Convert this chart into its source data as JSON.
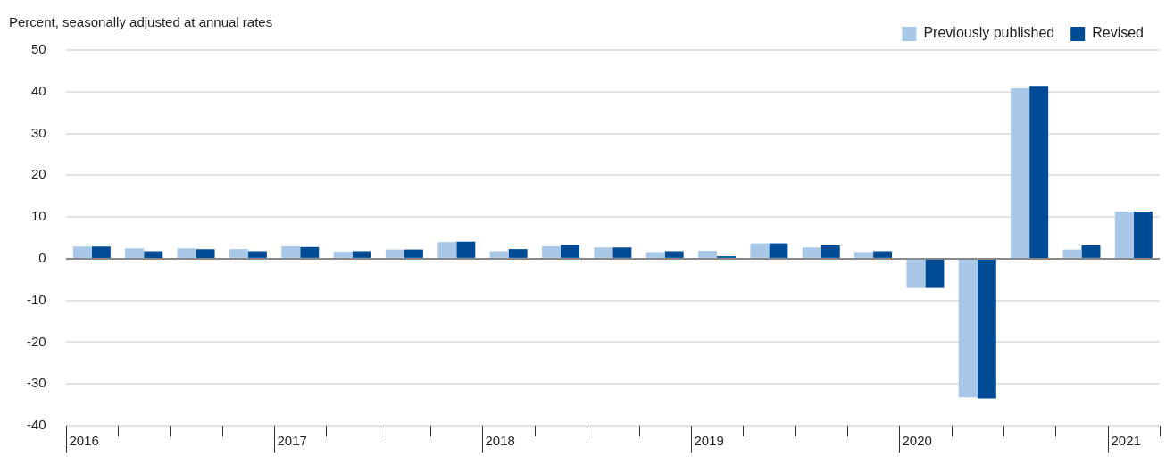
{
  "chart_data": {
    "type": "bar",
    "ylabel": "Percent, seasonally adjusted at annual rates",
    "categories": [
      "2016",
      null,
      null,
      null,
      "2017",
      null,
      null,
      null,
      "2018",
      null,
      null,
      null,
      "2019",
      null,
      null,
      null,
      "2020",
      null,
      null,
      null,
      "2021"
    ],
    "series": [
      {
        "name": "Previously published",
        "color": "#a9c8e8",
        "values": [
          2.9,
          2.5,
          2.5,
          2.3,
          3.0,
          1.7,
          2.2,
          4.0,
          1.8,
          3.0,
          2.7,
          1.6,
          1.9,
          3.7,
          2.7,
          1.6,
          -7.0,
          -33.2,
          40.8,
          2.2,
          11.3
        ]
      },
      {
        "name": "Revised",
        "color": "#004b96",
        "values": [
          2.9,
          1.8,
          2.3,
          1.8,
          2.8,
          1.8,
          2.2,
          4.1,
          2.3,
          3.3,
          2.7,
          1.8,
          0.6,
          3.7,
          3.2,
          1.8,
          -7.0,
          -33.5,
          41.4,
          3.2,
          11.3
        ]
      }
    ],
    "ylim": [
      -40,
      50
    ],
    "yticks": [
      -40,
      -30,
      -20,
      -10,
      0,
      10,
      20,
      30,
      40,
      50
    ],
    "grid": "y",
    "legend": "top right"
  }
}
